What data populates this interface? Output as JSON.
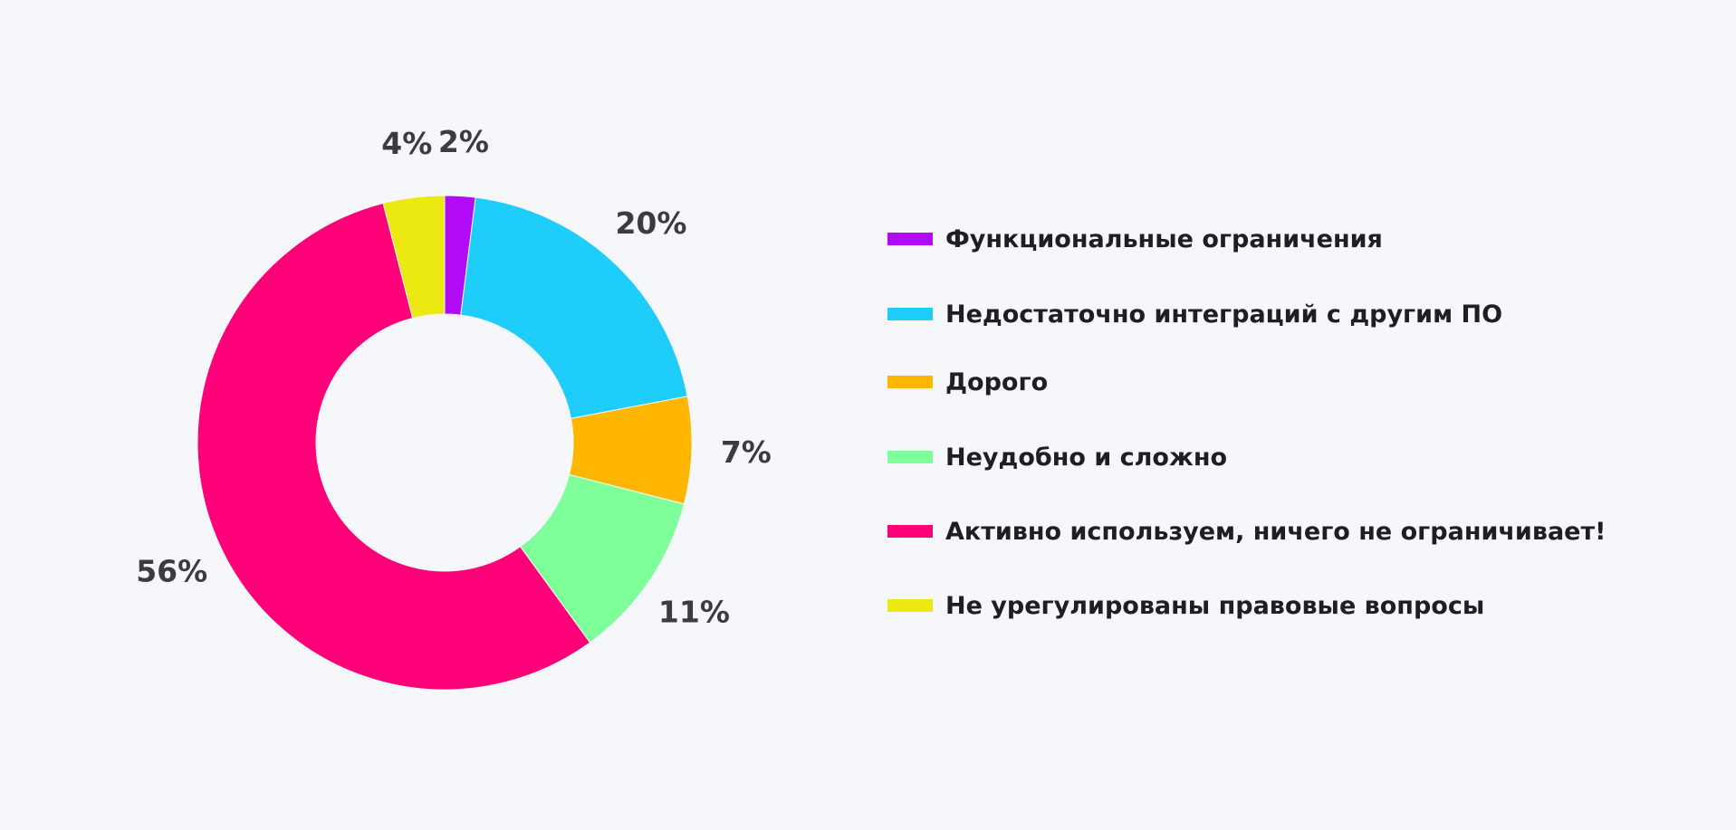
{
  "chart_data": {
    "type": "pie",
    "donut": true,
    "legend_position": "right",
    "slices": [
      {
        "label": "Функциональные ограничения",
        "value": 2,
        "value_label": "2%",
        "color": "#b10cf5"
      },
      {
        "label": "Недостаточно интеграций с другим ПО",
        "value": 20,
        "value_label": "20%",
        "color": "#1fcdfb"
      },
      {
        "label": "Дорого",
        "value": 7,
        "value_label": "7%",
        "color": "#ffb600"
      },
      {
        "label": "Неудобно и сложно",
        "value": 11,
        "value_label": "11%",
        "color": "#7fff9a"
      },
      {
        "label": "Активно используем, ничего не ограничивает!",
        "value": 56,
        "value_label": "56%",
        "color": "#ff0078"
      },
      {
        "label": "Не урегулированы правовые вопросы",
        "value": 4,
        "value_label": "4%",
        "color": "#ece811"
      }
    ]
  }
}
